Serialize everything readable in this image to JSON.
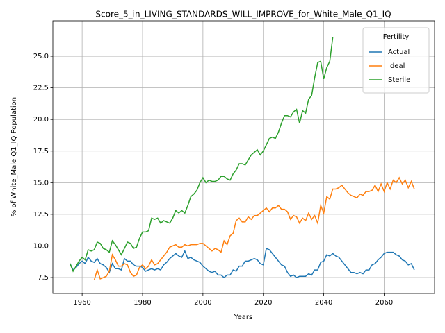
{
  "chart_data": {
    "type": "line",
    "title": "Score_5_in_LIVING_STANDARDS_WILL_IMPROVE_for_White_Male_Q1_IQ",
    "xlabel": "Years",
    "ylabel": "% of White_Male Q1_IQ Population",
    "legend_title": "Fertility",
    "legend": "upper right",
    "grid": true,
    "xlim": [
      1950.3,
      2076.7
    ],
    "ylim": [
      6.24,
      27.8
    ],
    "xticks": [
      1960,
      1980,
      2000,
      2020,
      2040,
      2060
    ],
    "yticks": [
      7.5,
      {
        "value": 10.0,
        "label": "10.0"
      },
      12.5,
      {
        "value": 15.0,
        "label": "15.0"
      },
      17.5,
      {
        "value": 20.0,
        "label": "20.0"
      },
      22.5,
      {
        "value": 25.0,
        "label": "25.0"
      }
    ],
    "x": [
      1956,
      1957,
      1958,
      1959,
      1960,
      1961,
      1962,
      1963,
      1964,
      1965,
      1966,
      1967,
      1968,
      1969,
      1970,
      1971,
      1972,
      1973,
      1974,
      1975,
      1976,
      1977,
      1978,
      1979,
      1980,
      1981,
      1982,
      1983,
      1984,
      1985,
      1986,
      1987,
      1988,
      1989,
      1990,
      1991,
      1992,
      1993,
      1994,
      1995,
      1996,
      1997,
      1998,
      1999,
      2000,
      2001,
      2002,
      2003,
      2004,
      2005,
      2006,
      2007,
      2008,
      2009,
      2010,
      2011,
      2012,
      2013,
      2014,
      2015,
      2016,
      2017,
      2018,
      2019,
      2020,
      2021,
      2022,
      2023,
      2024,
      2025,
      2026,
      2027,
      2028,
      2029,
      2030,
      2031,
      2032,
      2033,
      2034,
      2035,
      2036,
      2037,
      2038,
      2039,
      2040,
      2041,
      2042,
      2043,
      2044,
      2045,
      2046,
      2047,
      2048,
      2049,
      2050,
      2051,
      2052,
      2053,
      2054,
      2055,
      2056,
      2057,
      2058,
      2059,
      2060,
      2061,
      2062,
      2063,
      2064,
      2065,
      2066,
      2067,
      2068,
      2069,
      2070
    ],
    "series": [
      {
        "name": "Actual",
        "color": "#1f77b4",
        "values": [
          8.6,
          8.1,
          8.3,
          8.6,
          8.8,
          8.6,
          9.1,
          8.8,
          8.7,
          9.0,
          8.6,
          8.5,
          8.3,
          7.9,
          8.6,
          8.2,
          8.2,
          8.1,
          9.0,
          8.8,
          8.8,
          8.5,
          8.4,
          8.4,
          8.3,
          8.0,
          8.1,
          8.2,
          8.1,
          8.2,
          8.1,
          8.5,
          8.7,
          9.0,
          9.2,
          9.4,
          9.2,
          9.1,
          9.6,
          9.0,
          9.1,
          8.9,
          8.8,
          8.7,
          8.4,
          8.2,
          8.0,
          7.9,
          8.0,
          7.7,
          7.7,
          7.5,
          7.7,
          7.7,
          8.1,
          8.0,
          8.4,
          8.4,
          8.8,
          8.8,
          8.9,
          9.0,
          8.9,
          8.6,
          8.5,
          9.8,
          9.7,
          9.4,
          9.1,
          8.8,
          8.5,
          8.4,
          7.9,
          7.6,
          7.7,
          7.5,
          7.6,
          7.6,
          7.6,
          7.8,
          7.7,
          8.1,
          8.1,
          8.7,
          8.8,
          9.3,
          9.2,
          9.4,
          9.2,
          9.1,
          8.8,
          8.5,
          8.2,
          7.9,
          7.9,
          7.8,
          7.9,
          7.8,
          8.1,
          8.1,
          8.5,
          8.6,
          8.9,
          9.1,
          9.4,
          9.5,
          9.5,
          9.5,
          9.3,
          9.2,
          8.9,
          8.8,
          8.5,
          8.6,
          8.1
        ]
      },
      {
        "name": "Ideal",
        "color": "#ff7f0e",
        "values": [
          null,
          null,
          null,
          null,
          null,
          null,
          null,
          null,
          7.3,
          8.1,
          7.4,
          7.5,
          7.6,
          8.0,
          9.3,
          8.9,
          8.4,
          8.4,
          8.6,
          8.5,
          7.9,
          7.6,
          7.7,
          8.3,
          8.5,
          8.2,
          8.4,
          8.9,
          8.5,
          8.6,
          8.9,
          9.2,
          9.5,
          9.9,
          10.0,
          10.1,
          9.9,
          9.9,
          10.1,
          10.0,
          10.1,
          10.1,
          10.1,
          10.2,
          10.2,
          10.0,
          9.8,
          9.6,
          9.8,
          9.7,
          9.5,
          10.4,
          10.1,
          10.8,
          11.0,
          12.0,
          12.2,
          11.9,
          11.9,
          12.3,
          12.1,
          12.4,
          12.4,
          12.6,
          12.8,
          13.0,
          12.7,
          13.0,
          13.0,
          13.2,
          12.9,
          12.9,
          12.7,
          12.1,
          12.4,
          12.3,
          11.8,
          12.2,
          12.0,
          12.6,
          12.1,
          12.4,
          11.8,
          13.2,
          12.6,
          13.9,
          13.7,
          14.5,
          14.5,
          14.6,
          14.8,
          14.5,
          14.2,
          14.0,
          13.9,
          13.8,
          14.1,
          14.0,
          14.3,
          14.3,
          14.4,
          14.8,
          14.3,
          14.9,
          14.3,
          15.0,
          14.5,
          15.2,
          15.0,
          15.4,
          14.9,
          15.2,
          14.6,
          15.1,
          14.5
        ]
      },
      {
        "name": "Sterile",
        "color": "#2ca02c",
        "values": [
          8.6,
          8.0,
          8.4,
          8.8,
          9.1,
          8.9,
          9.7,
          9.6,
          9.7,
          10.3,
          10.2,
          9.8,
          9.7,
          9.5,
          10.4,
          10.1,
          9.7,
          9.3,
          9.8,
          10.3,
          10.2,
          9.8,
          9.9,
          10.6,
          11.1,
          11.1,
          11.2,
          12.2,
          12.1,
          12.2,
          11.8,
          12.0,
          11.9,
          11.8,
          12.2,
          12.8,
          12.6,
          12.8,
          12.6,
          13.2,
          13.9,
          14.1,
          14.4,
          15.0,
          15.4,
          15.0,
          15.2,
          15.1,
          15.1,
          15.2,
          15.5,
          15.5,
          15.3,
          15.2,
          15.7,
          16.0,
          16.5,
          16.5,
          16.4,
          16.8,
          17.2,
          17.4,
          17.6,
          17.2,
          17.5,
          18.0,
          18.5,
          18.6,
          18.5,
          19.0,
          19.7,
          20.3,
          20.3,
          20.2,
          20.6,
          20.8,
          19.7,
          20.7,
          20.5,
          21.6,
          21.9,
          23.3,
          24.5,
          24.6,
          23.2,
          24.1,
          24.6,
          26.5,
          null,
          null,
          null,
          null,
          null,
          null,
          null,
          null,
          null,
          null,
          null,
          null,
          null,
          null,
          null,
          null,
          null,
          null,
          null,
          null,
          null,
          null,
          null,
          null,
          null,
          null,
          null
        ]
      }
    ]
  }
}
